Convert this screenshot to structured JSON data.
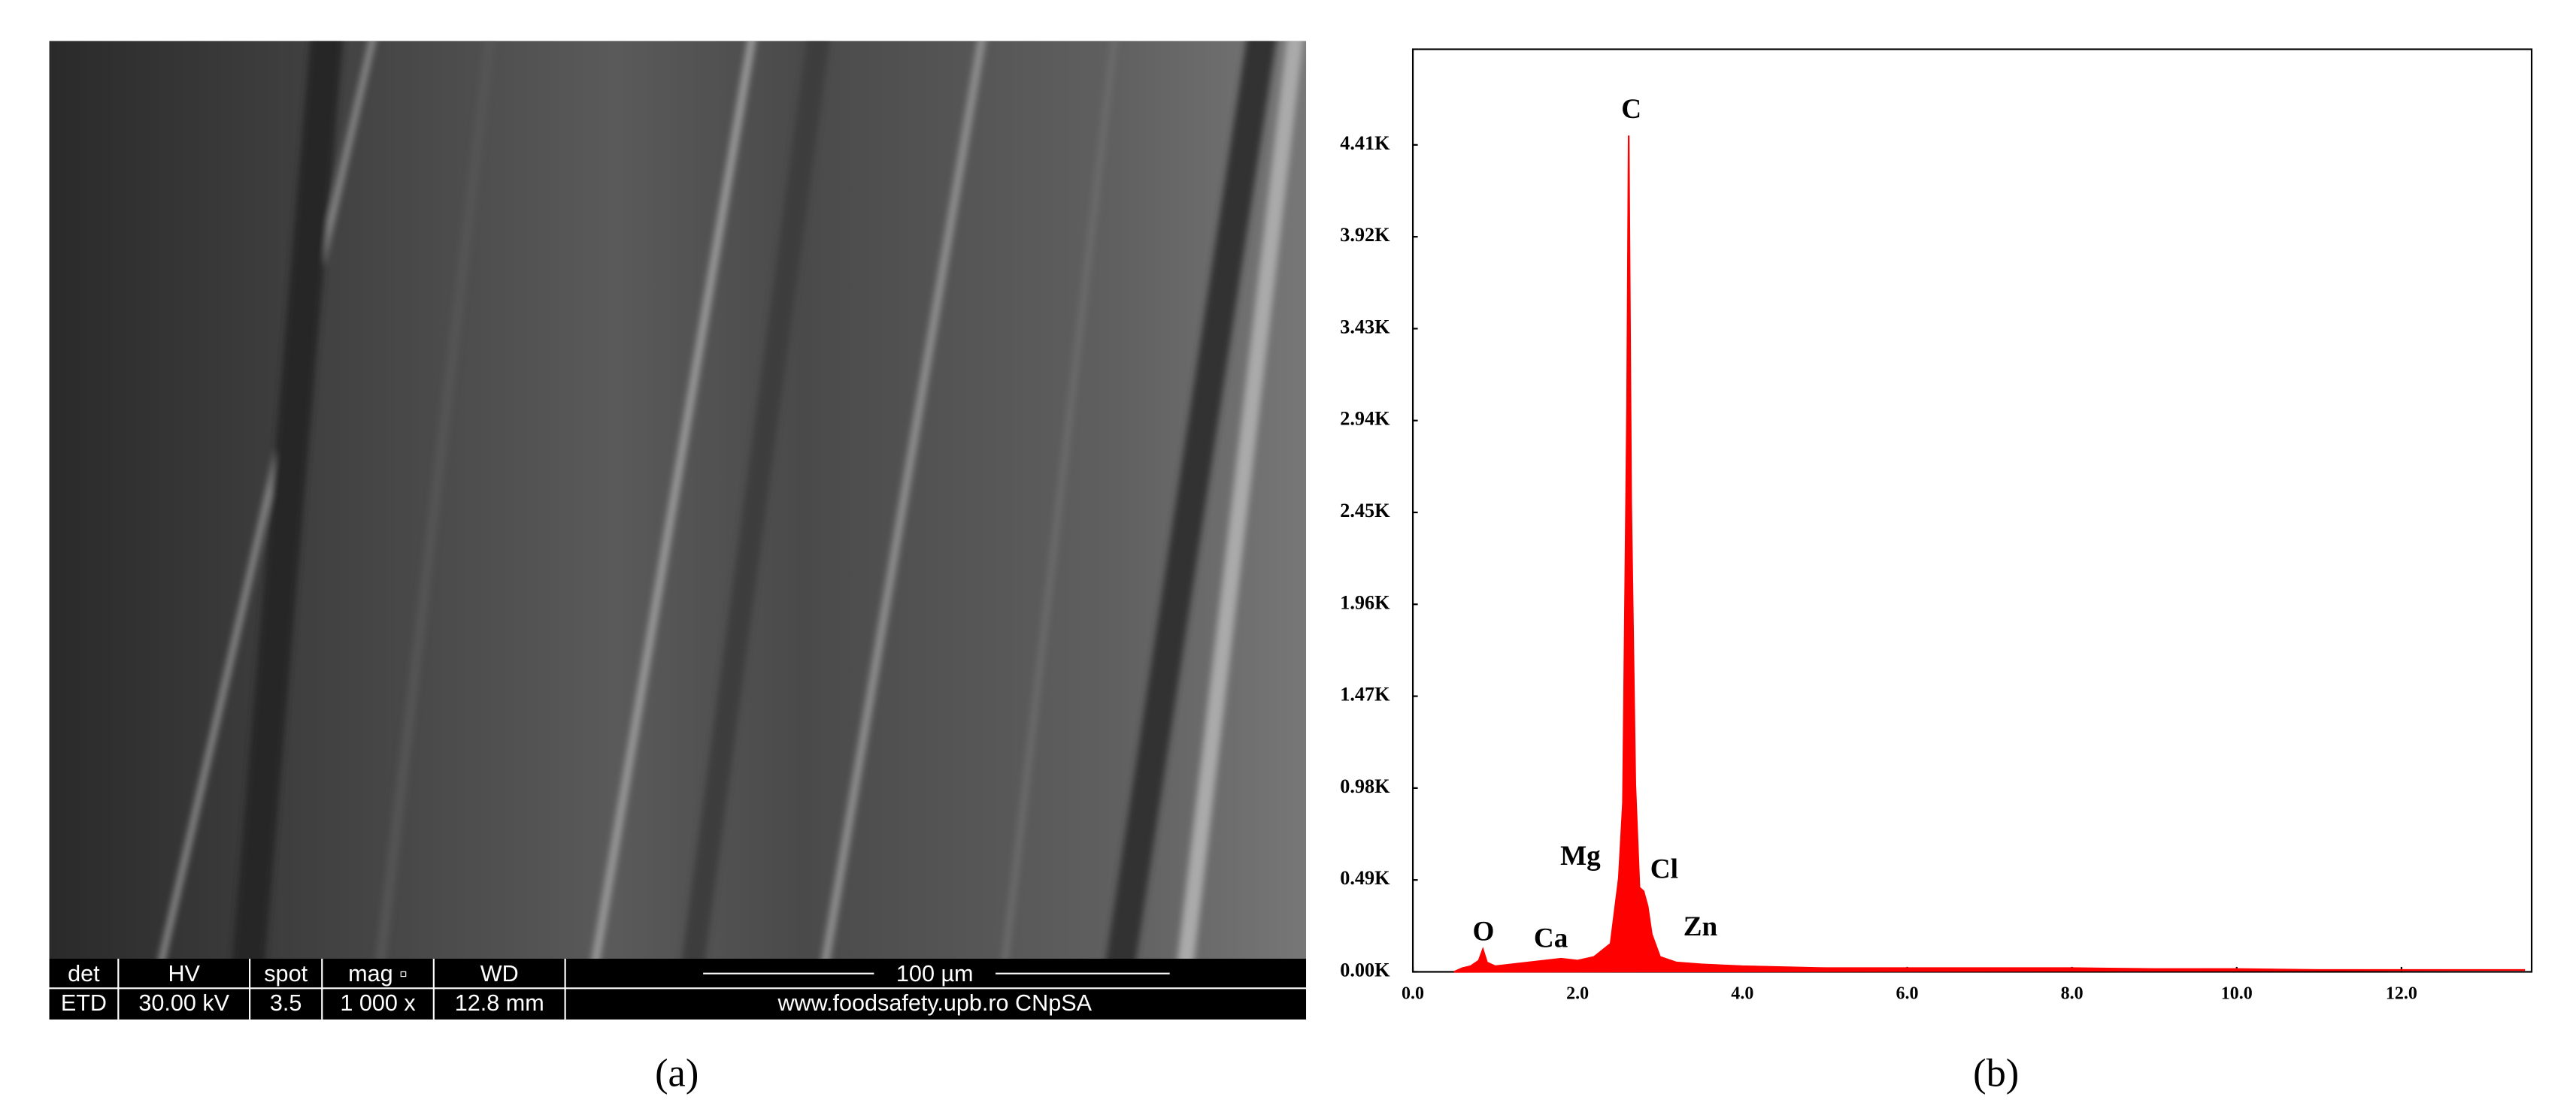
{
  "chart_data": {
    "type": "area",
    "x": [
      0.5,
      0.6,
      0.7,
      0.8,
      0.85,
      0.9,
      1.0,
      1.2,
      1.4,
      1.6,
      1.8,
      2.0,
      2.2,
      2.4,
      2.5,
      2.55,
      2.6,
      2.62,
      2.65,
      2.7,
      2.75,
      2.8,
      2.85,
      2.9,
      3.0,
      3.2,
      3.5,
      4.0,
      5.0,
      6.0,
      7.0,
      8.0,
      9.0,
      10.0,
      11.0,
      12.0,
      13.0,
      13.5
    ],
    "values": [
      0,
      0.02,
      0.03,
      0.06,
      0.12,
      0.05,
      0.03,
      0.04,
      0.05,
      0.06,
      0.07,
      0.06,
      0.08,
      0.15,
      0.5,
      0.9,
      3.0,
      4.46,
      2.5,
      1.0,
      0.45,
      0.43,
      0.35,
      0.2,
      0.08,
      0.05,
      0.04,
      0.03,
      0.02,
      0.02,
      0.02,
      0.02,
      0.015,
      0.015,
      0.01,
      0.01,
      0.01,
      0.01
    ],
    "color": "#ff0000",
    "xlim": [
      0,
      13.58
    ],
    "ylim": [
      0,
      4.92
    ],
    "xticks": [
      {
        "value": 0,
        "label": "0.0"
      },
      {
        "value": 2,
        "label": "2.0"
      },
      {
        "value": 4,
        "label": "4.0"
      },
      {
        "value": 6,
        "label": "6.0"
      },
      {
        "value": 8,
        "label": "8.0"
      },
      {
        "value": 10,
        "label": "10.0"
      },
      {
        "value": 12,
        "label": "12.0"
      }
    ],
    "yticks": [
      {
        "value": 0,
        "label": "0.00K"
      },
      {
        "value": 0.49,
        "label": "0.49K"
      },
      {
        "value": 0.98,
        "label": "0.98K"
      },
      {
        "value": 1.47,
        "label": "1.47K"
      },
      {
        "value": 1.96,
        "label": "1.96K"
      },
      {
        "value": 2.45,
        "label": "2.45K"
      },
      {
        "value": 2.94,
        "label": "2.94K"
      },
      {
        "value": 3.43,
        "label": "3.43K"
      },
      {
        "value": 3.92,
        "label": "3.92K"
      },
      {
        "value": 4.41,
        "label": "4.41K"
      }
    ],
    "annotations": [
      "C",
      "Mg",
      "Cl",
      "O",
      "Ca",
      "Zn"
    ],
    "grid": false
  },
  "sem_image": {
    "info_bar": {
      "headers": [
        "det",
        "HV",
        "spot",
        "mag ▫",
        "WD"
      ],
      "values": [
        "ETD",
        "30.00 kV",
        "3.5",
        "1 000 x",
        "12.8 mm"
      ],
      "scale": "100 µm",
      "credit": "www.foodsafety.upb.ro CNpSA"
    }
  },
  "captions": [
    "(a)",
    "(b)"
  ]
}
